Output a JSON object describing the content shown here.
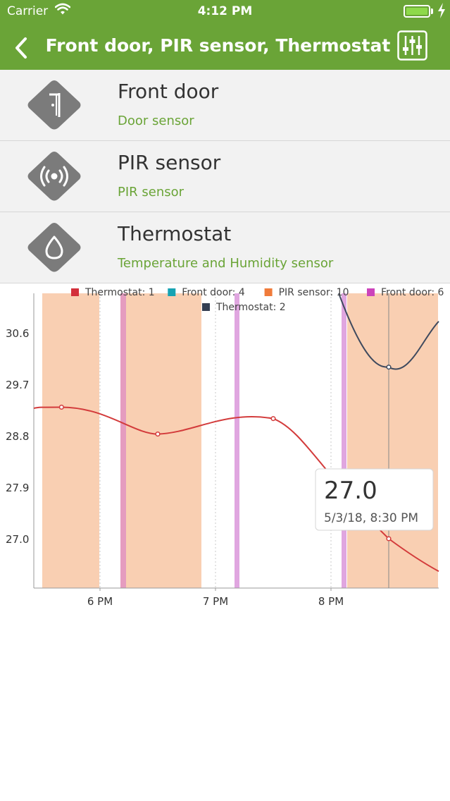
{
  "status_bar": {
    "carrier": "Carrier",
    "time": "4:12 PM"
  },
  "header": {
    "title": "Front door, PIR sensor, Thermostat",
    "back_icon": "chevron-left-icon",
    "filter_icon": "sliders-icon"
  },
  "devices": [
    {
      "name": "Front door",
      "type": "Door sensor",
      "icon": "door-icon"
    },
    {
      "name": "PIR sensor",
      "type": "PIR sensor",
      "icon": "motion-sensor-icon"
    },
    {
      "name": "Thermostat",
      "type": "Temperature and Humidity sensor",
      "icon": "drop-icon"
    }
  ],
  "colors": {
    "brand": "#6aa437",
    "shade": "#f9cfb2",
    "pink_band": "#e59cbf",
    "violet_band": "#e0a6e0",
    "line_red": "#d33b3b",
    "line_navy": "#3f4a5e"
  },
  "chart_data": {
    "type": "line",
    "legend": [
      {
        "name": "Thermostat: 1",
        "color": "#d32f3a"
      },
      {
        "name": "Front door: 4",
        "color": "#17a3b3"
      },
      {
        "name": "PIR sensor: 10",
        "color": "#f07b3a"
      },
      {
        "name": "Front door: 6",
        "color": "#cc44bb"
      },
      {
        "name": "Thermostat: 2",
        "color": "#343e52"
      }
    ],
    "x_ticks": [
      "6 PM",
      "7 PM",
      "8 PM"
    ],
    "y_ticks": [
      "30.6",
      "29.7",
      "28.8",
      "27.9",
      "27.0"
    ],
    "series": [
      {
        "name": "Thermostat: 1",
        "color": "#d33b3b",
        "points": [
          [
            "17:40",
            29.3
          ],
          [
            "18:30",
            28.83
          ],
          [
            "19:30",
            29.1
          ],
          [
            "20:30",
            27.0
          ]
        ]
      },
      {
        "name": "Thermostat: 2",
        "color": "#3f4a5e",
        "points": [
          [
            "20:30",
            30.0
          ]
        ]
      }
    ],
    "tooltip": {
      "value": "27.0",
      "label": "5/3/18, 8:30 PM"
    }
  }
}
